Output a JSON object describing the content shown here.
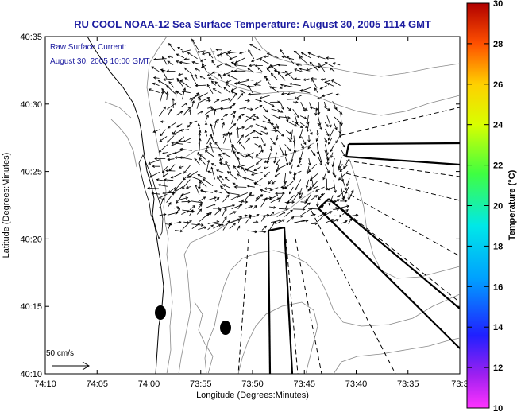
{
  "title": "RU COOL  NOAA-12  Sea Surface Temperature:  August 30, 2005 1114 GMT",
  "annotation": {
    "line1": "Raw Surface Current:",
    "line2": "August 30, 2005 10:00 GMT"
  },
  "scale_label": "50 cm/s",
  "axes": {
    "xlabel": "Longitude (Degrees:Minutes)",
    "ylabel": "Latitude (Degrees:Minutes)",
    "xticks": [
      "74:10",
      "74:05",
      "74:00",
      "73:55",
      "73:50",
      "73:45",
      "73:40",
      "73:35",
      "73:3"
    ],
    "yticks": [
      "40:35",
      "40:30",
      "40:25",
      "40:20",
      "40:15",
      "40:10"
    ]
  },
  "colorbar": {
    "label": "Temperature (°C)",
    "ticks": [
      "30",
      "28",
      "26",
      "24",
      "22",
      "20",
      "18",
      "16",
      "14",
      "12",
      "10"
    ],
    "min": 10,
    "max": 30
  },
  "colors": {
    "title": "#1c1ca0",
    "annotation": "#1c1ca0",
    "axis": "#000000",
    "contour": "#888888"
  }
}
